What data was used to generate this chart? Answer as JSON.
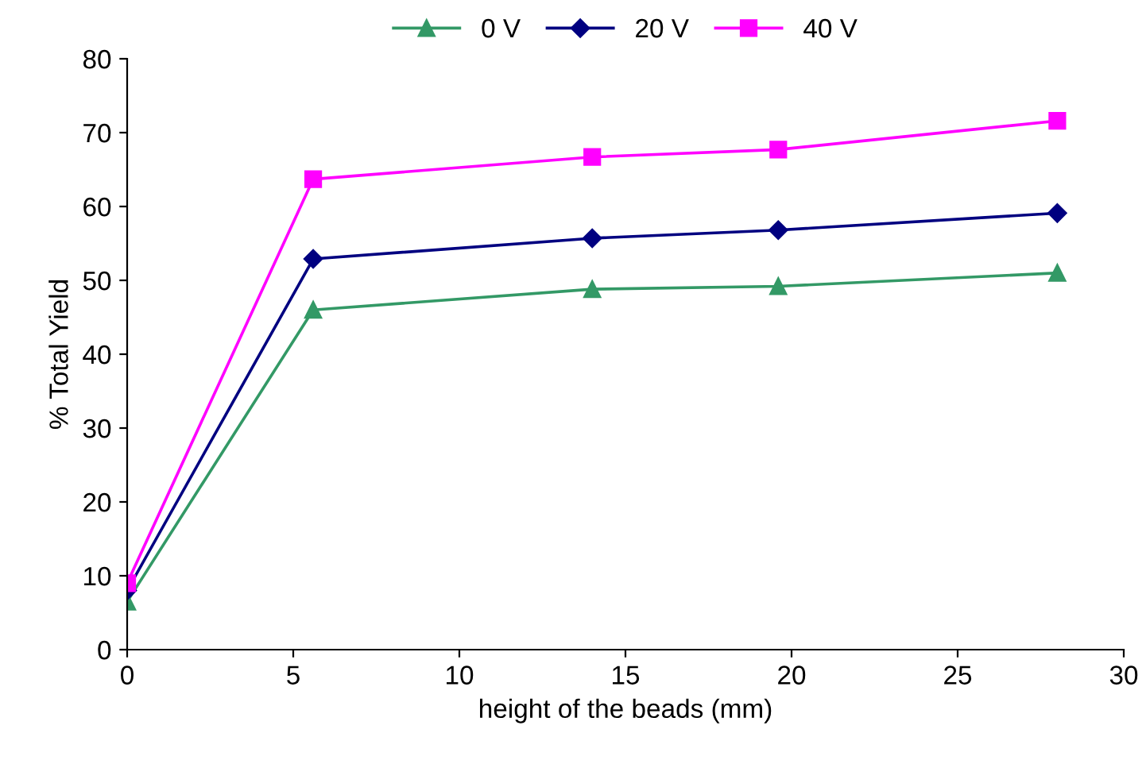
{
  "chart_data": {
    "type": "line",
    "xlabel": "height of the beads (mm)",
    "ylabel": "% Total Yield",
    "x": [
      0,
      5.6,
      14,
      19.6,
      28
    ],
    "series": [
      {
        "name": "0 V",
        "color": "#339966",
        "marker": "triangle",
        "values": [
          6.5,
          46,
          48.8,
          49.2,
          51
        ]
      },
      {
        "name": "20 V",
        "color": "#000080",
        "marker": "diamond",
        "values": [
          8,
          52.9,
          55.7,
          56.8,
          59.1
        ]
      },
      {
        "name": "40 V",
        "color": "#ff00ff",
        "marker": "square",
        "values": [
          9,
          63.7,
          66.7,
          67.7,
          71.6
        ]
      }
    ],
    "xlim": [
      0,
      30
    ],
    "xticks": [
      0,
      5,
      10,
      15,
      20,
      25,
      30
    ],
    "ylim": [
      0,
      80
    ],
    "yticks": [
      0,
      10,
      20,
      30,
      40,
      50,
      60,
      70,
      80
    ],
    "grid": false,
    "legend": "top",
    "line_style": "solid"
  }
}
